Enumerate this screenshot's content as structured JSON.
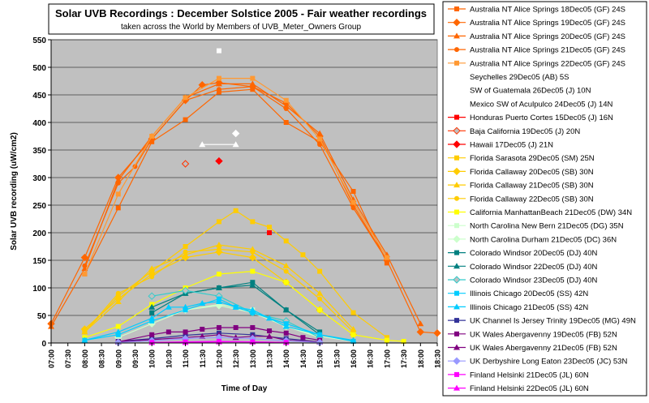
{
  "chart_data": {
    "type": "line",
    "title": "Solar UVB Recordings : December Solstice 2005 - Fair weather recordings",
    "subtitle": "taken across the World by Members of UVB_Meter_Owners Group",
    "xlabel": "Time of Day",
    "ylabel": "Solar UVB recording (uW/cm2)",
    "ylim": [
      0,
      550
    ],
    "yticks": [
      0,
      50,
      100,
      150,
      200,
      250,
      300,
      350,
      400,
      450,
      500,
      550
    ],
    "xlim": [
      7,
      18.5
    ],
    "xticks": [
      7,
      7.5,
      8,
      8.5,
      9,
      9.5,
      10,
      10.5,
      11,
      11.5,
      12,
      12.5,
      13,
      13.5,
      14,
      14.5,
      15,
      15.5,
      16,
      16.5,
      17,
      17.5,
      18,
      18.5
    ],
    "xtick_labels": [
      "07:00",
      "07:30",
      "08:00",
      "08:30",
      "09:00",
      "09:30",
      "10:00",
      "10:30",
      "11:00",
      "11:30",
      "12:00",
      "12:30",
      "13:00",
      "13:30",
      "14:00",
      "14:30",
      "15:00",
      "15:30",
      "16:00",
      "16:30",
      "17:00",
      "17:30",
      "18:00",
      "18:30"
    ],
    "grid": true,
    "plot_background": "#c0c0c0",
    "legend_position": "right",
    "series": [
      {
        "name": "Australia NT Alice Springs 18Dec05 (GF) 24S",
        "color": "#ff6600",
        "marker": "square",
        "points": [
          [
            8,
            125
          ],
          [
            9,
            245
          ],
          [
            10,
            365
          ],
          [
            11,
            405
          ],
          [
            12,
            455
          ],
          [
            13,
            460
          ],
          [
            14,
            400
          ],
          [
            15,
            365
          ],
          [
            16,
            275
          ],
          [
            17,
            145
          ]
        ]
      },
      {
        "name": "Australia NT Alice Springs 19Dec05 (GF) 24S",
        "color": "#ff6600",
        "marker": "diamond",
        "points": [
          [
            7,
            35
          ],
          [
            8,
            155
          ],
          [
            9,
            300
          ],
          [
            10,
            370
          ],
          [
            11,
            440
          ],
          [
            11.5,
            468
          ],
          [
            12,
            472
          ],
          [
            13,
            465
          ],
          [
            14,
            435
          ],
          [
            15,
            375
          ],
          [
            16,
            250
          ],
          [
            17,
            150
          ],
          [
            18,
            20
          ],
          [
            18.5,
            18
          ]
        ]
      },
      {
        "name": "Australia NT Alice Springs 20Dec05 (GF) 24S",
        "color": "#ff6600",
        "marker": "triangle",
        "points": [
          [
            7,
            30
          ],
          [
            8,
            135
          ],
          [
            9,
            295
          ],
          [
            10,
            375
          ],
          [
            11,
            445
          ],
          [
            12,
            470
          ],
          [
            13,
            470
          ],
          [
            14,
            430
          ],
          [
            15,
            380
          ],
          [
            16,
            260
          ],
          [
            17,
            160
          ],
          [
            18,
            35
          ]
        ]
      },
      {
        "name": "Australia NT Alice Springs 21Dec05 (GF) 24S",
        "color": "#ff6600",
        "marker": "circle",
        "points": [
          [
            8,
            140
          ],
          [
            9,
            290
          ],
          [
            9.5,
            320
          ],
          [
            10,
            370
          ],
          [
            11,
            440
          ],
          [
            12,
            460
          ],
          [
            13,
            465
          ],
          [
            14,
            425
          ],
          [
            15,
            360
          ],
          [
            16,
            245
          ],
          [
            17,
            150
          ]
        ]
      },
      {
        "name": "Australia NT Alice Springs 22Dec05 (GF) 24S",
        "color": "#ff9933",
        "marker": "square",
        "points": [
          [
            8,
            125
          ],
          [
            9,
            270
          ],
          [
            10,
            375
          ],
          [
            11,
            445
          ],
          [
            12,
            480
          ],
          [
            13,
            480
          ],
          [
            14,
            440
          ],
          [
            15,
            370
          ],
          [
            16,
            255
          ],
          [
            17,
            155
          ]
        ]
      },
      {
        "name": "Seychelles 29Dec05 (AB) 5S",
        "color": "#ffffff",
        "marker": "square",
        "points": [
          [
            12,
            530
          ]
        ]
      },
      {
        "name": "SW of Guatemala 26Dec05 (J) 10N",
        "color": "#ffffff",
        "marker": "diamond",
        "points": [
          [
            12.5,
            380
          ]
        ]
      },
      {
        "name": "Mexico SW of Aculpulco 24Dec05 (J) 14N",
        "color": "#ffffff",
        "marker": "triangle",
        "points": [
          [
            11.5,
            360
          ],
          [
            12.5,
            360
          ]
        ]
      },
      {
        "name": "Honduras Puerto Cortes 15Dec05 (J) 16N",
        "color": "#ff0000",
        "marker": "square",
        "points": [
          [
            13.5,
            200
          ]
        ]
      },
      {
        "name": "Baja California 19Dec05 (J) 20N",
        "color": "#ff3300",
        "marker": "diamond-open",
        "points": [
          [
            11,
            325
          ]
        ]
      },
      {
        "name": "Hawaii 17Dec05 (J) 21N",
        "color": "#ff0000",
        "marker": "diamond",
        "points": [
          [
            12,
            330
          ]
        ]
      },
      {
        "name": "Florida Sarasota 29Dec05 (SM) 25N",
        "color": "#ffcc00",
        "marker": "square",
        "points": [
          [
            8,
            20
          ],
          [
            9,
            85
          ],
          [
            10,
            130
          ],
          [
            11,
            175
          ],
          [
            12,
            220
          ],
          [
            12.5,
            240
          ],
          [
            13,
            220
          ],
          [
            13.5,
            210
          ],
          [
            14,
            185
          ],
          [
            14.5,
            160
          ],
          [
            15,
            130
          ],
          [
            16,
            55
          ],
          [
            17,
            10
          ]
        ]
      },
      {
        "name": "Florida Callaway 20Dec05 (SB) 30N",
        "color": "#ffcc00",
        "marker": "diamond",
        "points": [
          [
            8,
            25
          ],
          [
            9,
            80
          ],
          [
            10,
            125
          ],
          [
            11,
            155
          ],
          [
            12,
            165
          ],
          [
            13,
            155
          ],
          [
            14,
            110
          ],
          [
            15,
            60
          ],
          [
            16,
            15
          ]
        ]
      },
      {
        "name": "Florida Callaway 21Dec05 (SB) 30N",
        "color": "#ffcc00",
        "marker": "triangle",
        "points": [
          [
            8,
            20
          ],
          [
            9,
            75
          ],
          [
            10,
            135
          ],
          [
            11,
            160
          ],
          [
            12,
            178
          ],
          [
            13,
            170
          ],
          [
            14,
            140
          ],
          [
            15,
            90
          ],
          [
            16,
            25
          ]
        ]
      },
      {
        "name": "Florida Callaway 22Dec05 (SB) 30N",
        "color": "#ffcc00",
        "marker": "circle",
        "points": [
          [
            8,
            20
          ],
          [
            9,
            90
          ],
          [
            10,
            120
          ],
          [
            11,
            165
          ],
          [
            12,
            170
          ],
          [
            13,
            165
          ],
          [
            14,
            130
          ],
          [
            15,
            80
          ],
          [
            16,
            20
          ]
        ]
      },
      {
        "name": "California ManhattanBeach 21Dec05 (DW) 34N",
        "color": "#ffff00",
        "marker": "square",
        "points": [
          [
            8,
            10
          ],
          [
            9,
            30
          ],
          [
            10,
            70
          ],
          [
            11,
            100
          ],
          [
            12,
            125
          ],
          [
            13,
            130
          ],
          [
            14,
            110
          ],
          [
            15,
            60
          ],
          [
            16,
            15
          ],
          [
            17,
            5
          ],
          [
            17.5,
            3
          ]
        ]
      },
      {
        "name": "North Carolina New Bern 21Dec05 (DG) 35N",
        "color": "#ccffcc",
        "marker": "square",
        "points": [
          [
            8,
            5
          ],
          [
            9,
            15
          ],
          [
            10,
            40
          ],
          [
            11,
            60
          ],
          [
            12,
            70
          ],
          [
            13,
            60
          ],
          [
            14,
            30
          ],
          [
            15,
            12
          ],
          [
            16,
            3
          ]
        ]
      },
      {
        "name": "North Carolina Durham 21Dec05 (DC) 36N",
        "color": "#ccffcc",
        "marker": "diamond",
        "points": [
          [
            9,
            10
          ],
          [
            10,
            35
          ],
          [
            11,
            60
          ],
          [
            12,
            68
          ],
          [
            13,
            55
          ],
          [
            14,
            30
          ],
          [
            15,
            10
          ]
        ]
      },
      {
        "name": "Colorado Windsor 20Dec05 (DJ) 40N",
        "color": "#008080",
        "marker": "square",
        "points": [
          [
            10,
            55
          ],
          [
            11,
            90
          ],
          [
            12,
            100
          ],
          [
            13,
            110
          ],
          [
            14,
            60
          ],
          [
            15,
            20
          ]
        ]
      },
      {
        "name": "Colorado Windsor 22Dec05 (DJ) 40N",
        "color": "#008080",
        "marker": "triangle",
        "points": [
          [
            10,
            65
          ],
          [
            11,
            90
          ],
          [
            12,
            100
          ],
          [
            13,
            105
          ],
          [
            14,
            60
          ],
          [
            15,
            15
          ]
        ]
      },
      {
        "name": "Colorado Windsor 23Dec05 (DJ) 40N",
        "color": "#33cccc",
        "marker": "diamond-open",
        "points": [
          [
            10,
            85
          ],
          [
            11,
            95
          ],
          [
            12,
            85
          ],
          [
            13,
            55
          ],
          [
            14,
            40
          ],
          [
            15,
            10
          ]
        ]
      },
      {
        "name": "Illinois Chicago 20Dec05 (SS) 42N",
        "color": "#00ccff",
        "marker": "square",
        "points": [
          [
            8,
            5
          ],
          [
            9,
            15
          ],
          [
            10,
            40
          ],
          [
            11,
            60
          ],
          [
            12,
            80
          ],
          [
            12.5,
            65
          ],
          [
            13,
            55
          ],
          [
            14,
            35
          ],
          [
            15,
            15
          ],
          [
            16,
            3
          ]
        ]
      },
      {
        "name": "Illinois Chicago 21Dec05 (SS) 42N",
        "color": "#00ccff",
        "marker": "triangle",
        "points": [
          [
            8,
            5
          ],
          [
            9,
            20
          ],
          [
            10,
            45
          ],
          [
            10.5,
            65
          ],
          [
            11,
            65
          ],
          [
            11.5,
            72
          ],
          [
            12,
            75
          ],
          [
            12.5,
            65
          ],
          [
            13,
            60
          ],
          [
            13.5,
            45
          ],
          [
            14,
            30
          ],
          [
            15,
            15
          ],
          [
            16,
            5
          ]
        ]
      },
      {
        "name": "UK Channel Is Jersey Trinity 19Dec05 (MG) 49N",
        "color": "#333399",
        "marker": "square",
        "points": [
          [
            9,
            3
          ],
          [
            10,
            8
          ],
          [
            11,
            14
          ],
          [
            12,
            18
          ],
          [
            13,
            15
          ],
          [
            14,
            8
          ],
          [
            15,
            2
          ]
        ]
      },
      {
        "name": "UK Wales Abergavenny 19Dec05 (FB) 52N",
        "color": "#800080",
        "marker": "square",
        "points": [
          [
            9,
            2
          ],
          [
            10,
            15
          ],
          [
            10.5,
            20
          ],
          [
            11,
            20
          ],
          [
            11.5,
            25
          ],
          [
            12,
            28
          ],
          [
            12.5,
            28
          ],
          [
            13,
            28
          ],
          [
            13.5,
            22
          ],
          [
            14,
            18
          ],
          [
            14.5,
            10
          ],
          [
            15,
            5
          ]
        ]
      },
      {
        "name": "UK Wales Abergavenny 21Dec05 (FB) 52N",
        "color": "#800080",
        "marker": "triangle",
        "points": [
          [
            9,
            2
          ],
          [
            10,
            6
          ],
          [
            11,
            10
          ],
          [
            11.5,
            12
          ],
          [
            12,
            15
          ],
          [
            12.5,
            10
          ],
          [
            13,
            12
          ],
          [
            13.5,
            12
          ],
          [
            14,
            5
          ],
          [
            15,
            2
          ]
        ]
      },
      {
        "name": "UK Derbyshire Long Eaton 23Dec05 (JC) 53N",
        "color": "#9999ff",
        "marker": "diamond",
        "points": [
          [
            9,
            1
          ],
          [
            10,
            4
          ],
          [
            11,
            8
          ],
          [
            12,
            10
          ],
          [
            13,
            8
          ],
          [
            14,
            4
          ],
          [
            15,
            1
          ]
        ]
      },
      {
        "name": "Finland Helsinki 21Dec05 (JL) 60N",
        "color": "#ff00ff",
        "marker": "square",
        "points": [
          [
            10,
            1
          ],
          [
            11,
            2
          ],
          [
            12,
            3
          ],
          [
            13,
            2
          ],
          [
            14,
            1
          ]
        ]
      },
      {
        "name": "Finland Helsinki 22Dec05 (JL) 60N",
        "color": "#ff00ff",
        "marker": "triangle",
        "points": [
          [
            10,
            1
          ],
          [
            11,
            1
          ],
          [
            12,
            2
          ],
          [
            13,
            2
          ],
          [
            14,
            1
          ]
        ]
      }
    ]
  }
}
